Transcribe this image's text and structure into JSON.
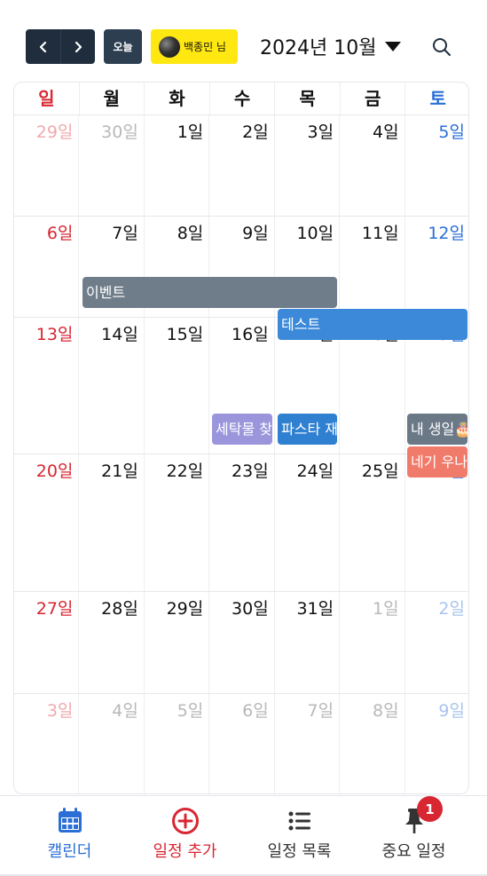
{
  "header": {
    "prev_icon": "chevron-left-icon",
    "next_icon": "chevron-right-icon",
    "today_label": "오늘",
    "user_name": "백종민 님",
    "month_title": "2024년 10월",
    "search_icon": "search-icon"
  },
  "colors": {
    "sunday": "#d82632",
    "saturday": "#2b6fd6",
    "weekday": "#111111",
    "muted_sunday": "#f1a9ad",
    "muted_saturday": "#a9c4ee",
    "muted_weekday": "#b8b8b8"
  },
  "weekdays": [
    "일",
    "월",
    "화",
    "수",
    "목",
    "금",
    "토"
  ],
  "weeks": [
    [
      "29일",
      "30일",
      "1일",
      "2일",
      "3일",
      "4일",
      "5일"
    ],
    [
      "6일",
      "7일",
      "8일",
      "9일",
      "10일",
      "11일",
      "12일"
    ],
    [
      "13일",
      "14일",
      "15일",
      "16일",
      "17일",
      "18일",
      "19일"
    ],
    [
      "20일",
      "21일",
      "22일",
      "23일",
      "24일",
      "25일",
      "26일"
    ],
    [
      "27일",
      "28일",
      "29일",
      "30일",
      "31일",
      "1일",
      "2일"
    ],
    [
      "3일",
      "4일",
      "5일",
      "6일",
      "7일",
      "8일",
      "9일"
    ]
  ],
  "events": [
    {
      "title": "이벤트",
      "color": "#6f7d8a"
    },
    {
      "title": "테스트",
      "color": "#3b89d8"
    },
    {
      "title": "세탁물 찾기",
      "color": "#9b96dc"
    },
    {
      "title": "파스타 재료",
      "color": "#2f80d0"
    },
    {
      "title": "내 생일🎂",
      "color": "#6b7886"
    },
    {
      "title": "네기 우나기",
      "color": "#f07b6b"
    }
  ],
  "bottom_nav": [
    {
      "label": "캘린더",
      "icon": "calendar-icon",
      "color": "#2b6fd6"
    },
    {
      "label": "일정 추가",
      "icon": "plus-circle-icon",
      "color": "#d82632"
    },
    {
      "label": "일정 목록",
      "icon": "list-icon",
      "color": "#333333"
    },
    {
      "label": "중요 일정",
      "icon": "pin-icon",
      "color": "#333333",
      "badge": "1"
    }
  ]
}
